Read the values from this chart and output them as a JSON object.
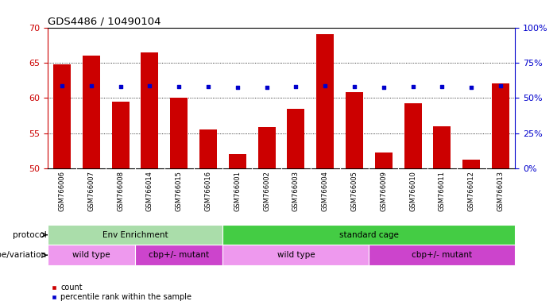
{
  "title": "GDS4486 / 10490104",
  "samples": [
    "GSM766006",
    "GSM766007",
    "GSM766008",
    "GSM766014",
    "GSM766015",
    "GSM766016",
    "GSM766001",
    "GSM766002",
    "GSM766003",
    "GSM766004",
    "GSM766005",
    "GSM766009",
    "GSM766010",
    "GSM766011",
    "GSM766012",
    "GSM766013"
  ],
  "count_values": [
    64.8,
    66.0,
    59.5,
    66.5,
    60.0,
    55.5,
    52.0,
    55.8,
    58.5,
    69.0,
    60.8,
    52.2,
    59.2,
    56.0,
    51.2,
    62.0
  ],
  "percentile_values": [
    58.5,
    58.5,
    58.0,
    58.5,
    57.8,
    57.8,
    57.5,
    57.5,
    58.0,
    58.5,
    58.0,
    57.2,
    58.2,
    57.8,
    57.2,
    58.5
  ],
  "ylim_left": [
    50,
    70
  ],
  "ylim_right": [
    0,
    100
  ],
  "yticks_left": [
    50,
    55,
    60,
    65,
    70
  ],
  "yticks_right": [
    0,
    25,
    50,
    75,
    100
  ],
  "bar_color": "#cc0000",
  "dot_color": "#0000cc",
  "bg_color": "#ffffff",
  "ticklabel_bg": "#cccccc",
  "protocol_groups": [
    {
      "label": "Env Enrichment",
      "start": 0,
      "end": 5,
      "color": "#aaddaa"
    },
    {
      "label": "standard cage",
      "start": 6,
      "end": 15,
      "color": "#44cc44"
    }
  ],
  "genotype_groups": [
    {
      "label": "wild type",
      "start": 0,
      "end": 2,
      "color": "#ee99ee"
    },
    {
      "label": "cbp+/- mutant",
      "start": 3,
      "end": 5,
      "color": "#cc44cc"
    },
    {
      "label": "wild type",
      "start": 6,
      "end": 10,
      "color": "#ee99ee"
    },
    {
      "label": "cbp+/- mutant",
      "start": 11,
      "end": 15,
      "color": "#cc44cc"
    }
  ],
  "legend_items": [
    {
      "label": "count",
      "color": "#cc0000"
    },
    {
      "label": "percentile rank within the sample",
      "color": "#0000cc"
    }
  ],
  "protocol_label": "protocol",
  "genotype_label": "genotype/variation",
  "bar_width": 0.6
}
